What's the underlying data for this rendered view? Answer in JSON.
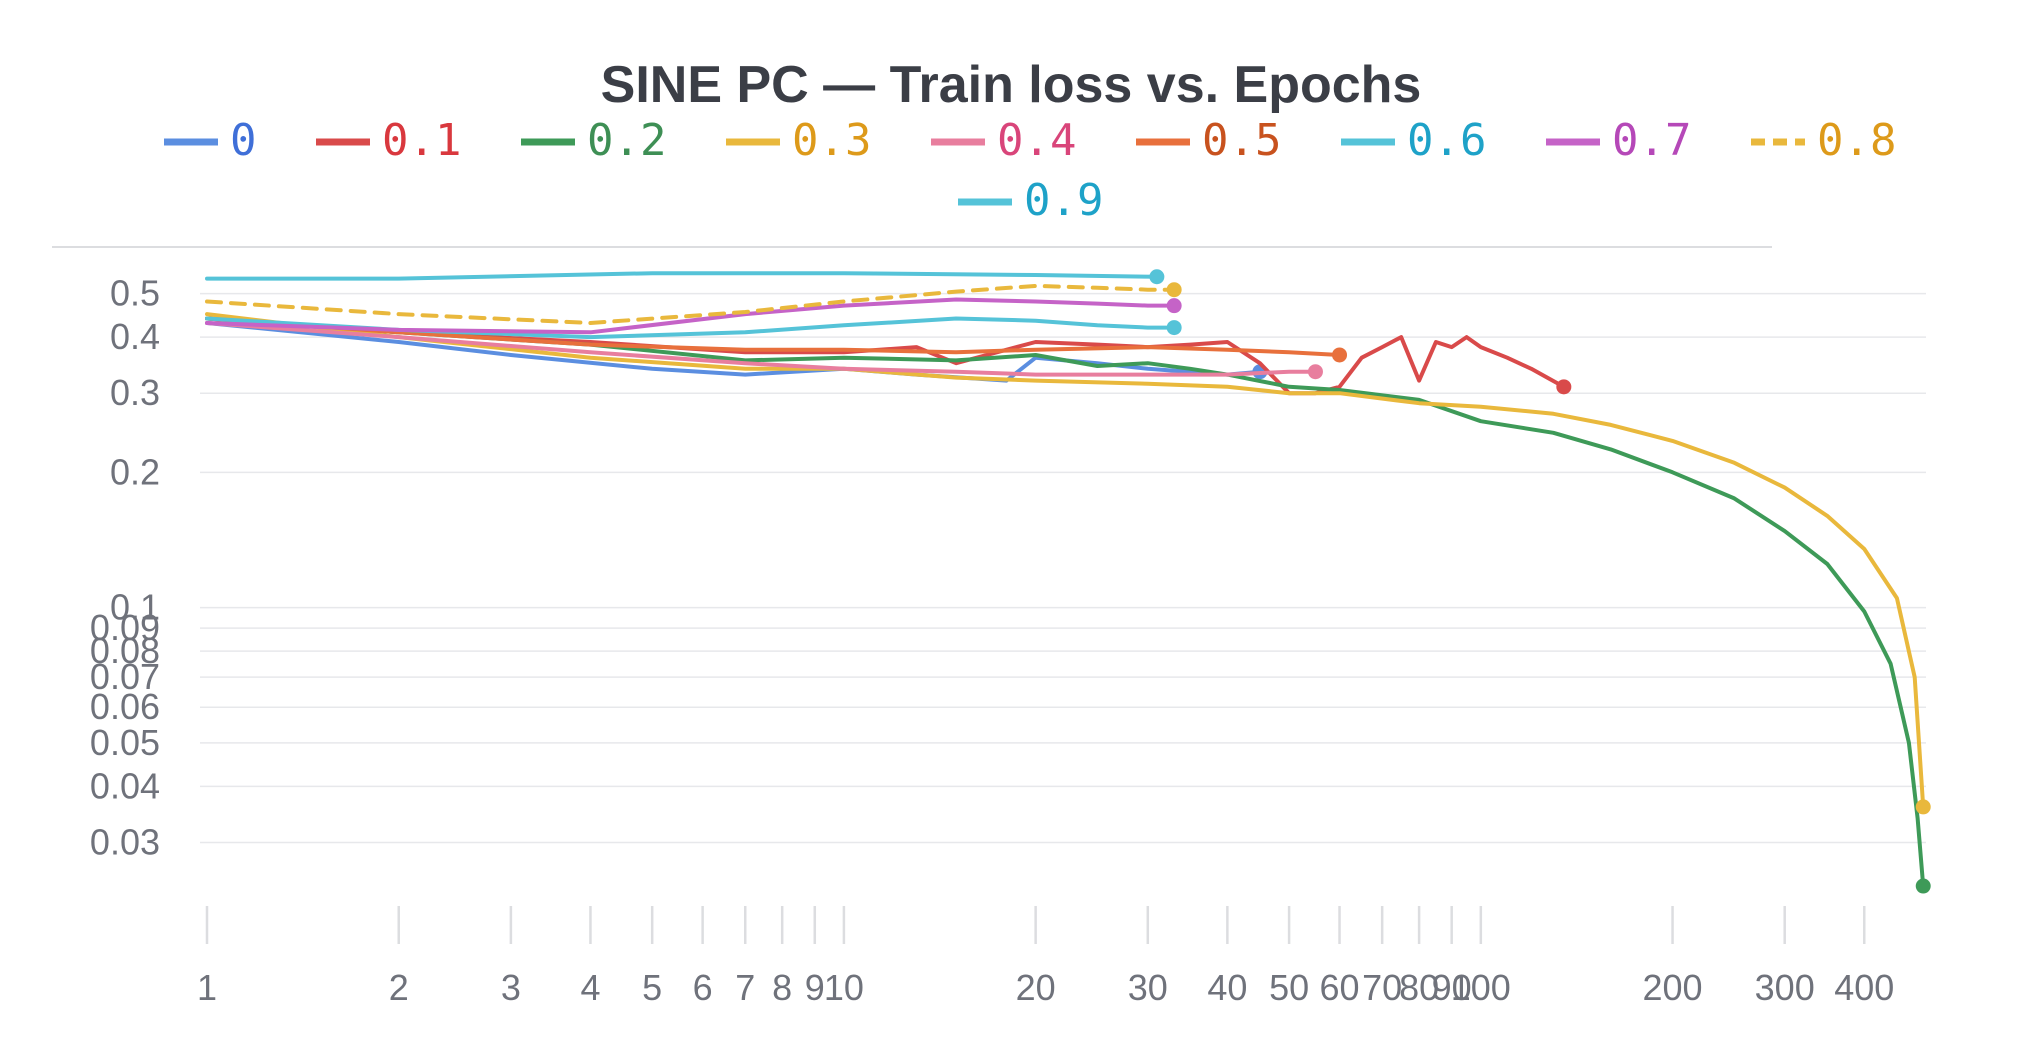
{
  "chart_data": {
    "type": "line",
    "title": "SINE PC — Train loss vs. Epochs",
    "xlabel": "",
    "ylabel": "",
    "x_scale": "log",
    "y_scale": "log",
    "xlim": [
      1,
      500
    ],
    "ylim": [
      0.022,
      0.6
    ],
    "x_ticks": [
      1,
      2,
      3,
      4,
      5,
      6,
      7,
      8,
      9,
      10,
      20,
      30,
      40,
      50,
      60,
      70,
      80,
      90,
      100,
      200,
      300,
      400
    ],
    "x_tick_labels": [
      "1",
      "2",
      "3",
      "4",
      "5",
      "6",
      "7",
      "8",
      "9",
      "10",
      "20",
      "30",
      "40",
      "50",
      "60",
      "70",
      "80",
      "90",
      "100",
      "200",
      "300",
      "400"
    ],
    "y_ticks": [
      0.5,
      0.4,
      0.3,
      0.2,
      0.1,
      0.09,
      0.08,
      0.07,
      0.06,
      0.05,
      0.04,
      0.03
    ],
    "y_tick_labels": [
      "0.5",
      "0.4",
      "0.3",
      "0.2",
      "0.1",
      "0.09",
      "0.08",
      "0.07",
      "0.06",
      "0.05",
      "0.04",
      "0.03"
    ],
    "grid": true,
    "legend_position": "top",
    "series": [
      {
        "name": "0",
        "color": "#5b8ee0",
        "dashed": false,
        "endpoint": true,
        "points": [
          [
            1,
            0.43
          ],
          [
            2,
            0.39
          ],
          [
            3,
            0.365
          ],
          [
            5,
            0.34
          ],
          [
            7,
            0.33
          ],
          [
            10,
            0.34
          ],
          [
            13,
            0.33
          ],
          [
            18,
            0.32
          ],
          [
            20,
            0.36
          ],
          [
            25,
            0.35
          ],
          [
            30,
            0.34
          ],
          [
            40,
            0.33
          ],
          [
            45,
            0.335
          ]
        ]
      },
      {
        "name": "0.1",
        "color": "#d94a4a",
        "dashed": false,
        "endpoint": true,
        "points": [
          [
            1,
            0.44
          ],
          [
            2,
            0.41
          ],
          [
            4,
            0.39
          ],
          [
            7,
            0.37
          ],
          [
            10,
            0.37
          ],
          [
            13,
            0.38
          ],
          [
            15,
            0.35
          ],
          [
            20,
            0.39
          ],
          [
            25,
            0.385
          ],
          [
            30,
            0.38
          ],
          [
            35,
            0.385
          ],
          [
            40,
            0.39
          ],
          [
            45,
            0.35
          ],
          [
            50,
            0.3
          ],
          [
            55,
            0.3
          ],
          [
            60,
            0.31
          ],
          [
            65,
            0.36
          ],
          [
            70,
            0.38
          ],
          [
            75,
            0.4
          ],
          [
            80,
            0.32
          ],
          [
            85,
            0.39
          ],
          [
            90,
            0.38
          ],
          [
            95,
            0.4
          ],
          [
            100,
            0.38
          ],
          [
            110,
            0.36
          ],
          [
            120,
            0.34
          ],
          [
            135,
            0.31
          ]
        ]
      },
      {
        "name": "0.2",
        "color": "#3e9a58",
        "dashed": false,
        "endpoint": true,
        "points": [
          [
            1,
            0.44
          ],
          [
            2,
            0.41
          ],
          [
            4,
            0.385
          ],
          [
            7,
            0.355
          ],
          [
            10,
            0.36
          ],
          [
            15,
            0.355
          ],
          [
            20,
            0.365
          ],
          [
            25,
            0.345
          ],
          [
            30,
            0.35
          ],
          [
            35,
            0.34
          ],
          [
            40,
            0.33
          ],
          [
            50,
            0.31
          ],
          [
            60,
            0.305
          ],
          [
            80,
            0.29
          ],
          [
            100,
            0.26
          ],
          [
            130,
            0.245
          ],
          [
            160,
            0.225
          ],
          [
            200,
            0.2
          ],
          [
            250,
            0.175
          ],
          [
            300,
            0.148
          ],
          [
            350,
            0.125
          ],
          [
            400,
            0.098
          ],
          [
            440,
            0.075
          ],
          [
            470,
            0.05
          ],
          [
            485,
            0.034
          ],
          [
            495,
            0.024
          ]
        ]
      },
      {
        "name": "0.3",
        "color": "#e9b83c",
        "dashed": false,
        "endpoint": true,
        "points": [
          [
            1,
            0.45
          ],
          [
            2,
            0.4
          ],
          [
            4,
            0.36
          ],
          [
            7,
            0.34
          ],
          [
            10,
            0.34
          ],
          [
            15,
            0.325
          ],
          [
            20,
            0.32
          ],
          [
            30,
            0.315
          ],
          [
            40,
            0.31
          ],
          [
            50,
            0.3
          ],
          [
            60,
            0.3
          ],
          [
            80,
            0.285
          ],
          [
            100,
            0.28
          ],
          [
            130,
            0.27
          ],
          [
            160,
            0.255
          ],
          [
            200,
            0.235
          ],
          [
            250,
            0.21
          ],
          [
            300,
            0.185
          ],
          [
            350,
            0.16
          ],
          [
            400,
            0.135
          ],
          [
            450,
            0.105
          ],
          [
            480,
            0.07
          ],
          [
            495,
            0.036
          ]
        ]
      },
      {
        "name": "0.4",
        "color": "#e87e9e",
        "dashed": false,
        "endpoint": true,
        "points": [
          [
            1,
            0.43
          ],
          [
            2,
            0.4
          ],
          [
            4,
            0.37
          ],
          [
            7,
            0.35
          ],
          [
            10,
            0.34
          ],
          [
            15,
            0.335
          ],
          [
            20,
            0.33
          ],
          [
            30,
            0.33
          ],
          [
            40,
            0.33
          ],
          [
            50,
            0.335
          ],
          [
            55,
            0.335
          ]
        ]
      },
      {
        "name": "0.5",
        "color": "#e8703c",
        "dashed": false,
        "endpoint": true,
        "points": [
          [
            1,
            0.44
          ],
          [
            2,
            0.41
          ],
          [
            4,
            0.385
          ],
          [
            7,
            0.375
          ],
          [
            10,
            0.375
          ],
          [
            15,
            0.37
          ],
          [
            20,
            0.375
          ],
          [
            30,
            0.38
          ],
          [
            40,
            0.375
          ],
          [
            50,
            0.37
          ],
          [
            60,
            0.365
          ]
        ]
      },
      {
        "name": "0.6",
        "color": "#55c3d8",
        "dashed": false,
        "endpoint": true,
        "points": [
          [
            1,
            0.44
          ],
          [
            2,
            0.415
          ],
          [
            4,
            0.4
          ],
          [
            7,
            0.41
          ],
          [
            10,
            0.425
          ],
          [
            15,
            0.44
          ],
          [
            20,
            0.435
          ],
          [
            25,
            0.425
          ],
          [
            30,
            0.42
          ],
          [
            33,
            0.42
          ]
        ]
      },
      {
        "name": "0.7",
        "color": "#c563c7",
        "dashed": false,
        "endpoint": true,
        "points": [
          [
            1,
            0.43
          ],
          [
            2,
            0.415
          ],
          [
            4,
            0.41
          ],
          [
            7,
            0.45
          ],
          [
            10,
            0.47
          ],
          [
            15,
            0.485
          ],
          [
            20,
            0.48
          ],
          [
            25,
            0.475
          ],
          [
            30,
            0.47
          ],
          [
            33,
            0.47
          ]
        ]
      },
      {
        "name": "0.8",
        "color": "#e9b83c",
        "dashed": true,
        "endpoint": true,
        "points": [
          [
            1,
            0.48
          ],
          [
            2,
            0.45
          ],
          [
            4,
            0.43
          ],
          [
            7,
            0.455
          ],
          [
            10,
            0.48
          ],
          [
            15,
            0.505
          ],
          [
            20,
            0.52
          ],
          [
            25,
            0.515
          ],
          [
            30,
            0.51
          ],
          [
            33,
            0.51
          ]
        ]
      },
      {
        "name": "0.9",
        "color": "#55c3d8",
        "dashed": false,
        "endpoint": true,
        "points": [
          [
            1,
            0.54
          ],
          [
            2,
            0.54
          ],
          [
            5,
            0.555
          ],
          [
            10,
            0.555
          ],
          [
            20,
            0.55
          ],
          [
            31,
            0.545
          ]
        ]
      }
    ]
  },
  "legend_colors": {
    "0": "#3f6fd8",
    "0.1": "#d9383e",
    "0.2": "#3e8f55",
    "0.3": "#dd9a1a",
    "0.4": "#d9457a",
    "0.5": "#c8521e",
    "0.6": "#1ea2c8",
    "0.7": "#b548b8",
    "0.8": "#dd9a1a",
    "0.9": "#1ea2c8"
  }
}
